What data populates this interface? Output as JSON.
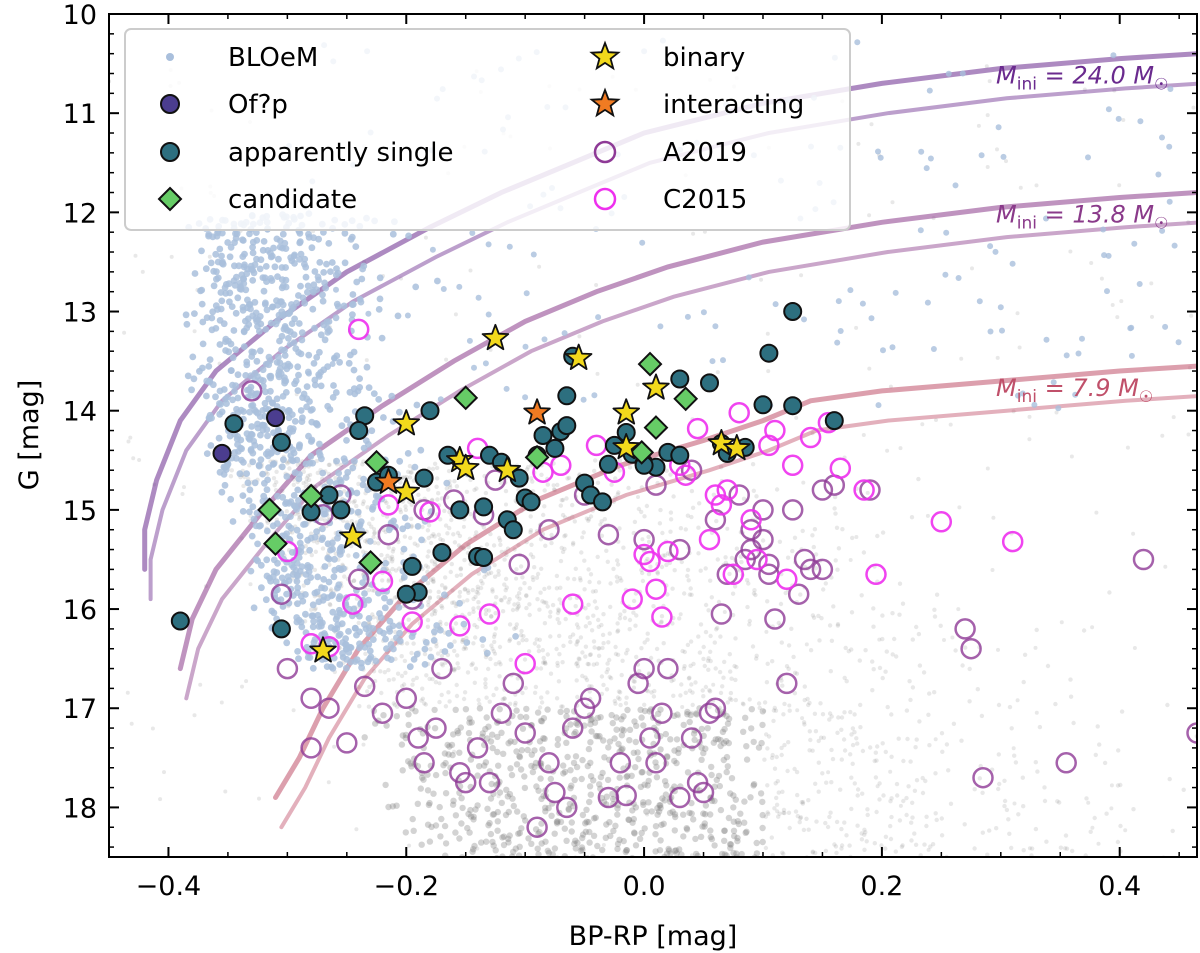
{
  "chart_data": {
    "type": "scatter",
    "xlabel": "BP-RP [mag]",
    "ylabel": "G [mag]",
    "xlim": [
      -0.45,
      0.465
    ],
    "ylim": [
      18.5,
      10.0
    ],
    "y_inverted": true,
    "x_ticks": [
      -0.4,
      -0.2,
      0.0,
      0.2,
      0.4
    ],
    "x_tick_labels": [
      "−0.4",
      "−0.2",
      "0.0",
      "0.2",
      "0.4"
    ],
    "y_ticks": [
      10,
      11,
      12,
      13,
      14,
      15,
      16,
      17,
      18
    ],
    "y_tick_labels": [
      "10",
      "11",
      "12",
      "13",
      "14",
      "15",
      "16",
      "17",
      "18"
    ],
    "legend": {
      "placement": "top-left",
      "entries": [
        {
          "key": "bloem",
          "label": "BLOeM"
        },
        {
          "key": "ofp",
          "label": "Of?p"
        },
        {
          "key": "single",
          "label": "apparently single"
        },
        {
          "key": "candidate",
          "label": "candidate"
        },
        {
          "key": "binary",
          "label": "binary"
        },
        {
          "key": "interacting",
          "label": "interacting"
        },
        {
          "key": "a2019",
          "label": "A2019"
        },
        {
          "key": "c2015",
          "label": "C2015"
        }
      ]
    },
    "colors": {
      "bloem": "#a9bfdc",
      "ofp": "#4b3d8f",
      "single": "#2d6f7f",
      "candidate": "#66cc66",
      "binary": "#f2d91c",
      "interacting": "#f07b22",
      "a2019": "#8e3a96",
      "c2015": "#ee30ee",
      "background": "#808080"
    },
    "tracks": [
      {
        "label_prefix": "M",
        "label_sub": "ini",
        "label_value": "= 24.0 M",
        "color": "#6a2a8e",
        "points": [
          [
            0.465,
            10.4
          ],
          [
            0.4,
            10.45
          ],
          [
            0.3,
            10.55
          ],
          [
            0.2,
            10.7
          ],
          [
            0.1,
            10.9
          ],
          [
            0.0,
            11.2
          ],
          [
            -0.06,
            11.5
          ],
          [
            -0.12,
            11.8
          ],
          [
            -0.18,
            12.15
          ],
          [
            -0.25,
            12.6
          ],
          [
            -0.31,
            13.1
          ],
          [
            -0.36,
            13.6
          ],
          [
            -0.39,
            14.1
          ],
          [
            -0.41,
            14.7
          ],
          [
            -0.42,
            15.2
          ],
          [
            -0.42,
            15.6
          ]
        ]
      },
      {
        "label_prefix": "M",
        "label_sub": "ini",
        "label_value": "= 13.8 M",
        "color": "#8a3a8a",
        "points": [
          [
            0.465,
            11.8
          ],
          [
            0.4,
            11.85
          ],
          [
            0.3,
            11.95
          ],
          [
            0.2,
            12.1
          ],
          [
            0.1,
            12.3
          ],
          [
            0.02,
            12.55
          ],
          [
            -0.04,
            12.8
          ],
          [
            -0.1,
            13.1
          ],
          [
            -0.16,
            13.5
          ],
          [
            -0.22,
            13.95
          ],
          [
            -0.28,
            14.45
          ],
          [
            -0.32,
            15.0
          ],
          [
            -0.36,
            15.6
          ],
          [
            -0.38,
            16.1
          ],
          [
            -0.39,
            16.6
          ]
        ]
      },
      {
        "label_prefix": "M",
        "label_sub": "ini",
        "label_value": "=  7.9 M",
        "color": "#c0506a",
        "points": [
          [
            0.465,
            13.55
          ],
          [
            0.4,
            13.6
          ],
          [
            0.3,
            13.7
          ],
          [
            0.2,
            13.8
          ],
          [
            0.14,
            13.9
          ],
          [
            0.1,
            14.1
          ],
          [
            0.05,
            14.3
          ],
          [
            -0.02,
            14.55
          ],
          [
            -0.09,
            14.9
          ],
          [
            -0.15,
            15.35
          ],
          [
            -0.2,
            15.85
          ],
          [
            -0.24,
            16.4
          ],
          [
            -0.27,
            17.0
          ],
          [
            -0.29,
            17.5
          ],
          [
            -0.31,
            17.9
          ]
        ]
      }
    ],
    "series": [
      {
        "name": "BLOeM",
        "marker": "dot",
        "color": "#a9bfdc",
        "note": "≈900 catalogue stars, drawn procedurally around a main-sequence band"
      },
      {
        "name": "Of?p",
        "marker": "circle",
        "color": "#4b3d8f",
        "x": [
          -0.355,
          -0.31
        ],
        "y": [
          14.43,
          14.07
        ]
      },
      {
        "name": "apparently single",
        "marker": "circle",
        "color": "#2d6f7f",
        "x": [
          -0.345,
          -0.305,
          -0.39,
          -0.305,
          -0.235,
          -0.24,
          -0.225,
          -0.215,
          -0.265,
          -0.255,
          -0.28,
          -0.195,
          -0.19,
          -0.185,
          -0.18,
          -0.17,
          -0.165,
          -0.14,
          -0.135,
          -0.13,
          -0.115,
          -0.11,
          -0.105,
          -0.1,
          -0.09,
          -0.085,
          -0.075,
          -0.07,
          -0.065,
          -0.065,
          -0.06,
          -0.05,
          -0.045,
          -0.035,
          -0.025,
          -0.015,
          -0.01,
          0.0,
          0.01,
          0.02,
          0.03,
          0.055,
          0.065,
          0.07,
          0.085,
          0.1,
          0.105,
          0.125,
          0.125,
          0.16,
          -0.2,
          -0.12,
          -0.135,
          -0.155,
          -0.095,
          -0.03,
          0.0,
          0.03
        ],
        "y": [
          14.13,
          14.32,
          16.12,
          16.2,
          14.05,
          14.2,
          14.72,
          14.65,
          14.85,
          15.0,
          15.02,
          15.57,
          15.83,
          14.68,
          14.0,
          15.43,
          14.45,
          15.47,
          15.48,
          14.45,
          15.1,
          15.2,
          14.68,
          14.88,
          14.45,
          14.25,
          14.38,
          14.21,
          14.15,
          13.85,
          13.45,
          14.73,
          14.85,
          14.92,
          14.35,
          14.22,
          14.44,
          14.53,
          14.57,
          14.42,
          13.68,
          13.72,
          14.33,
          14.43,
          14.37,
          13.94,
          13.42,
          13.0,
          13.95,
          14.1,
          15.85,
          14.52,
          14.97,
          15.0,
          14.92,
          14.54,
          14.55,
          14.45
        ]
      },
      {
        "name": "candidate",
        "marker": "diamond",
        "color": "#66cc66",
        "x": [
          -0.315,
          -0.31,
          -0.28,
          -0.23,
          -0.225,
          -0.15,
          -0.09,
          0.005,
          0.01,
          0.035,
          -0.002
        ],
        "y": [
          15.0,
          15.34,
          14.86,
          15.53,
          14.52,
          13.87,
          14.47,
          13.53,
          14.17,
          13.88,
          14.42
        ]
      },
      {
        "name": "binary",
        "marker": "star",
        "color": "#f2d91c",
        "x": [
          -0.27,
          -0.245,
          -0.2,
          -0.2,
          -0.155,
          -0.15,
          -0.125,
          -0.115,
          -0.055,
          -0.015,
          -0.015,
          0.01,
          0.065,
          0.078
        ],
        "y": [
          16.42,
          15.27,
          14.82,
          14.13,
          14.5,
          14.58,
          13.27,
          14.6,
          13.47,
          14.02,
          14.37,
          13.77,
          14.33,
          14.38
        ]
      },
      {
        "name": "interacting",
        "marker": "star",
        "color": "#f07b22",
        "x": [
          -0.215,
          -0.09
        ],
        "y": [
          14.72,
          14.02
        ]
      },
      {
        "name": "A2019",
        "marker": "open-circle",
        "color": "#8e3a96",
        "x": [
          -0.33,
          -0.305,
          -0.28,
          -0.265,
          -0.25,
          -0.235,
          -0.22,
          -0.2,
          -0.19,
          -0.185,
          -0.175,
          -0.17,
          -0.155,
          -0.15,
          -0.14,
          -0.13,
          -0.12,
          -0.11,
          -0.1,
          -0.09,
          -0.08,
          -0.075,
          -0.065,
          -0.06,
          -0.05,
          -0.045,
          -0.03,
          -0.02,
          -0.015,
          -0.005,
          0.0,
          0.005,
          0.01,
          0.015,
          0.02,
          0.03,
          0.04,
          0.045,
          0.05,
          0.055,
          0.06,
          0.065,
          0.07,
          0.08,
          0.085,
          0.09,
          0.1,
          0.105,
          0.11,
          0.12,
          0.13,
          0.14,
          0.15,
          0.16,
          0.19,
          0.27,
          0.275,
          0.285,
          0.355,
          0.42,
          0.465,
          -0.27,
          -0.255,
          -0.24,
          -0.215,
          -0.195,
          -0.185,
          -0.16,
          -0.135,
          -0.125,
          -0.105,
          -0.08,
          -0.05,
          -0.03,
          0.01,
          0.04,
          0.06,
          0.09,
          0.105,
          0.125,
          0.135,
          -0.3,
          -0.28,
          0.0,
          0.03,
          0.1,
          0.15
        ],
        "y": [
          13.8,
          15.85,
          17.4,
          17.0,
          17.35,
          16.78,
          17.05,
          16.9,
          17.3,
          17.55,
          17.2,
          16.6,
          17.65,
          17.75,
          17.4,
          17.75,
          17.05,
          16.75,
          17.25,
          18.2,
          17.55,
          17.85,
          18.0,
          17.2,
          17.0,
          16.9,
          17.9,
          17.55,
          17.88,
          16.75,
          16.6,
          17.3,
          17.55,
          17.05,
          16.6,
          17.9,
          17.3,
          17.75,
          17.85,
          17.05,
          17.0,
          16.05,
          15.65,
          14.85,
          15.5,
          15.2,
          15.3,
          15.65,
          16.1,
          16.75,
          15.85,
          15.6,
          14.8,
          14.75,
          14.8,
          16.2,
          16.4,
          17.7,
          17.55,
          15.5,
          17.25,
          15.05,
          14.85,
          15.7,
          15.25,
          15.9,
          15.0,
          14.9,
          15.05,
          14.7,
          15.55,
          15.2,
          14.85,
          15.25,
          14.75,
          14.6,
          15.1,
          15.4,
          15.55,
          15.0,
          15.5,
          16.6,
          16.9,
          15.3,
          15.4,
          15.0,
          15.6
        ]
      },
      {
        "name": "C2015",
        "marker": "open-circle",
        "color": "#ee30ee",
        "x": [
          -0.24,
          -0.28,
          -0.3,
          -0.245,
          -0.22,
          -0.195,
          -0.18,
          -0.155,
          -0.13,
          -0.1,
          -0.085,
          -0.06,
          -0.04,
          -0.025,
          0.0,
          0.01,
          0.02,
          0.03,
          0.045,
          0.06,
          0.065,
          0.075,
          0.08,
          0.095,
          0.105,
          0.12,
          0.14,
          0.165,
          0.185,
          0.195,
          0.25,
          0.31,
          -0.265,
          -0.215,
          -0.14,
          -0.07,
          -0.01,
          0.005,
          0.015,
          0.035,
          0.055,
          0.07,
          0.09,
          0.11,
          0.125,
          0.155
        ],
        "y": [
          13.18,
          16.35,
          15.42,
          15.95,
          15.72,
          16.13,
          15.02,
          16.17,
          16.05,
          16.55,
          14.62,
          15.95,
          14.35,
          14.62,
          15.45,
          15.8,
          15.42,
          14.55,
          14.18,
          14.85,
          14.95,
          15.65,
          14.02,
          15.5,
          14.35,
          15.7,
          14.27,
          14.58,
          14.8,
          15.65,
          15.12,
          15.32,
          16.38,
          14.95,
          14.38,
          14.55,
          15.9,
          15.52,
          16.08,
          14.65,
          15.3,
          14.8,
          15.1,
          14.2,
          14.55,
          14.12
        ]
      }
    ]
  }
}
